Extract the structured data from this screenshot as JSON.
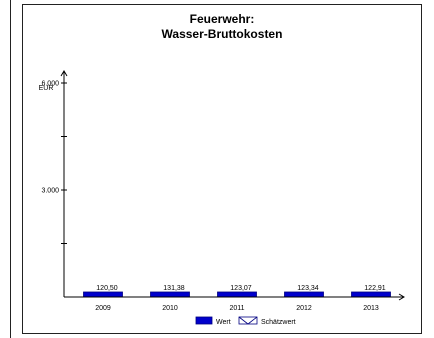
{
  "chart_data": {
    "type": "bar",
    "title": "Feuerwehr:",
    "subtitle": "Wasser-Bruttokosten",
    "y_unit": "EUR",
    "categories": [
      "2009",
      "2010",
      "2011",
      "2012",
      "2013"
    ],
    "series": [
      {
        "name": "Wert",
        "values": [
          120.5,
          131.38,
          123.07,
          123.34,
          122.91
        ]
      }
    ],
    "value_labels": [
      "120,50",
      "131,38",
      "123,07",
      "123,34",
      "122,91"
    ],
    "ylim": [
      0,
      6000
    ],
    "yticks": [
      {
        "value": 3000,
        "label": "3.000"
      },
      {
        "value": 6000,
        "label": "6.000"
      }
    ],
    "yminor_ticks": [
      1500,
      4500
    ],
    "legend": [
      {
        "name": "Wert",
        "style": "solid"
      },
      {
        "name": "Schätzwert",
        "style": "hatched"
      }
    ],
    "legend_position": "bottom",
    "grid": false,
    "colors": {
      "bar": "#0000cc",
      "bar_border": "#000080",
      "axis": "#000000"
    }
  }
}
